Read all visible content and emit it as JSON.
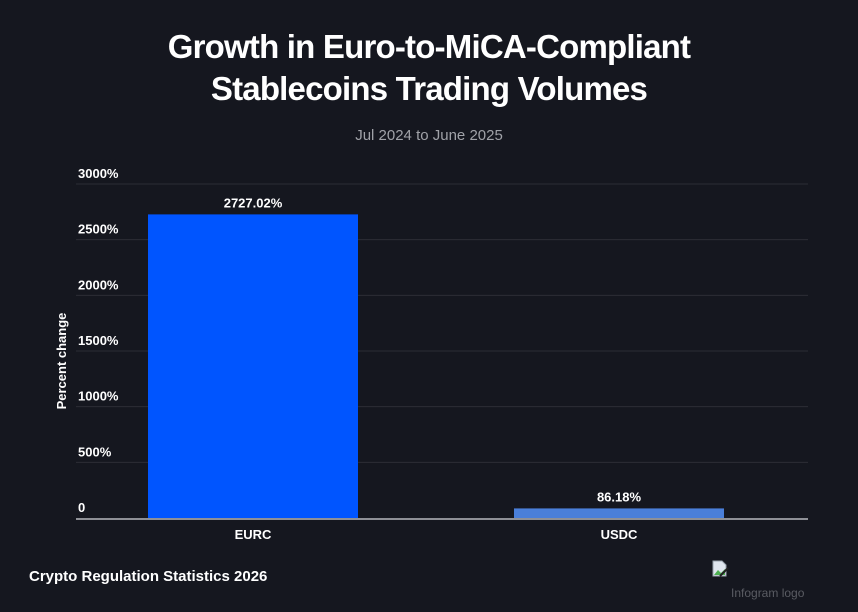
{
  "chart_data": {
    "type": "bar",
    "title": "Growth in Euro-to-MiCA-Compliant Stablecoins Trading Volumes",
    "title_lines": [
      "Growth in Euro-to-MiCA-Compliant",
      "Stablecoins Trading Volumes"
    ],
    "subtitle": "Jul 2024 to June 2025",
    "xlabel": "",
    "ylabel": "Percent change",
    "categories": [
      "EURC",
      "USDC"
    ],
    "values": [
      2727.02,
      86.18
    ],
    "data_labels": [
      "2727.02%",
      "86.18%"
    ],
    "bar_colors": [
      "#0055ff",
      "#4a7fd9"
    ],
    "ylim": [
      0,
      3000
    ],
    "yticks": [
      0,
      500,
      1000,
      1500,
      2000,
      2500,
      3000
    ],
    "ytick_labels": [
      "0",
      "500%",
      "1000%",
      "1500%",
      "2000%",
      "2500%",
      "3000%"
    ],
    "grid": true,
    "legend": "none"
  },
  "footer": {
    "source": "Crypto Regulation Statistics 2026",
    "logo_alt": "Infogram logo"
  },
  "colors": {
    "background": "#15171f",
    "gridline": "#2c2e36",
    "axis": "#8e9096",
    "text": "#ffffff",
    "subtitle": "#a0a2a8"
  }
}
